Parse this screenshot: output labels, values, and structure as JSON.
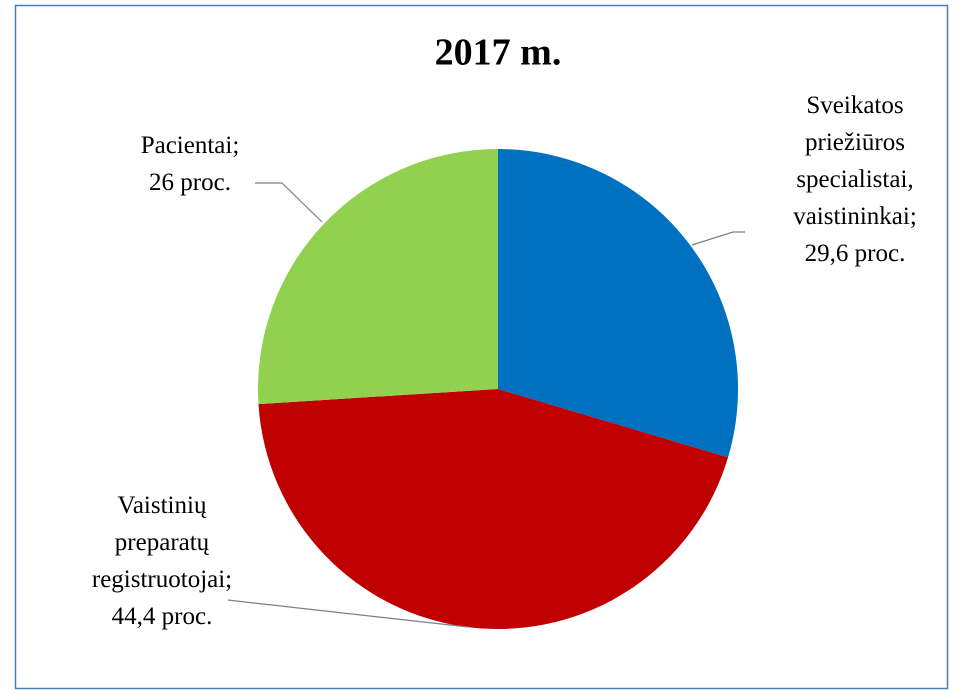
{
  "chart_data": {
    "type": "pie",
    "title": "2017 m.",
    "categories": [
      "Sveikatos priežiūros specialistai, vaistininkai;",
      "Vaistinių preparatų registruotojai;",
      "Pacientai;"
    ],
    "values": [
      29.6,
      44.4,
      26
    ],
    "value_labels": [
      "29,6 proc.",
      "44,4 proc.",
      "26 proc."
    ],
    "colors": [
      "#0070C0",
      "#C00000",
      "#92D050"
    ]
  }
}
